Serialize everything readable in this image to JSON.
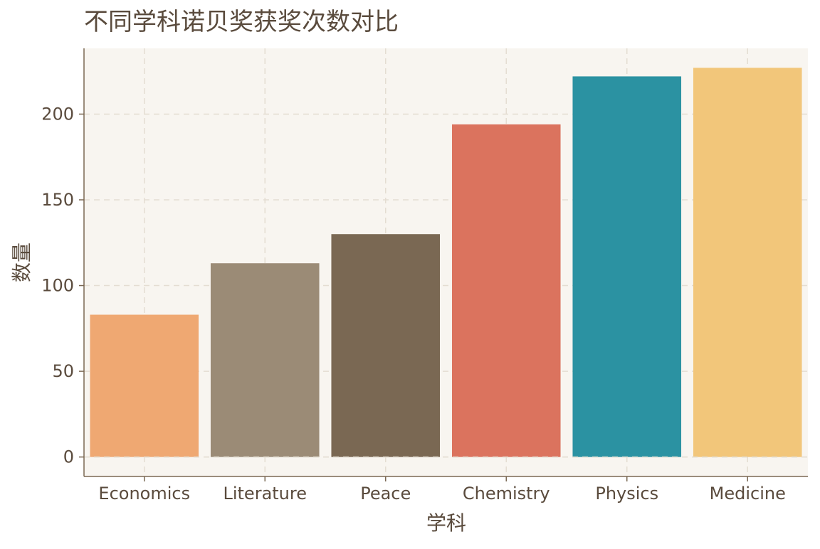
{
  "chart_data": {
    "type": "bar",
    "title": "不同学科诺贝奖获奖次数对比",
    "xlabel": "学科",
    "ylabel": "数量",
    "categories": [
      "Economics",
      "Literature",
      "Peace",
      "Chemistry",
      "Physics",
      "Medicine"
    ],
    "values": [
      83,
      113,
      130,
      194,
      222,
      227
    ],
    "colors": [
      "#EFA872",
      "#9B8B76",
      "#7A6853",
      "#DB735E",
      "#2B92A2",
      "#F2C67A"
    ],
    "ylim": [
      -11.35,
      238.35
    ],
    "yticks": [
      0,
      50,
      100,
      150,
      200
    ],
    "grid": true,
    "legend": "none",
    "style": {
      "plot_background": "#F8F5F0",
      "axis_color": "#7A6853",
      "grid_color": "#E4DDD2",
      "text_color": "#5A4B3D"
    }
  }
}
